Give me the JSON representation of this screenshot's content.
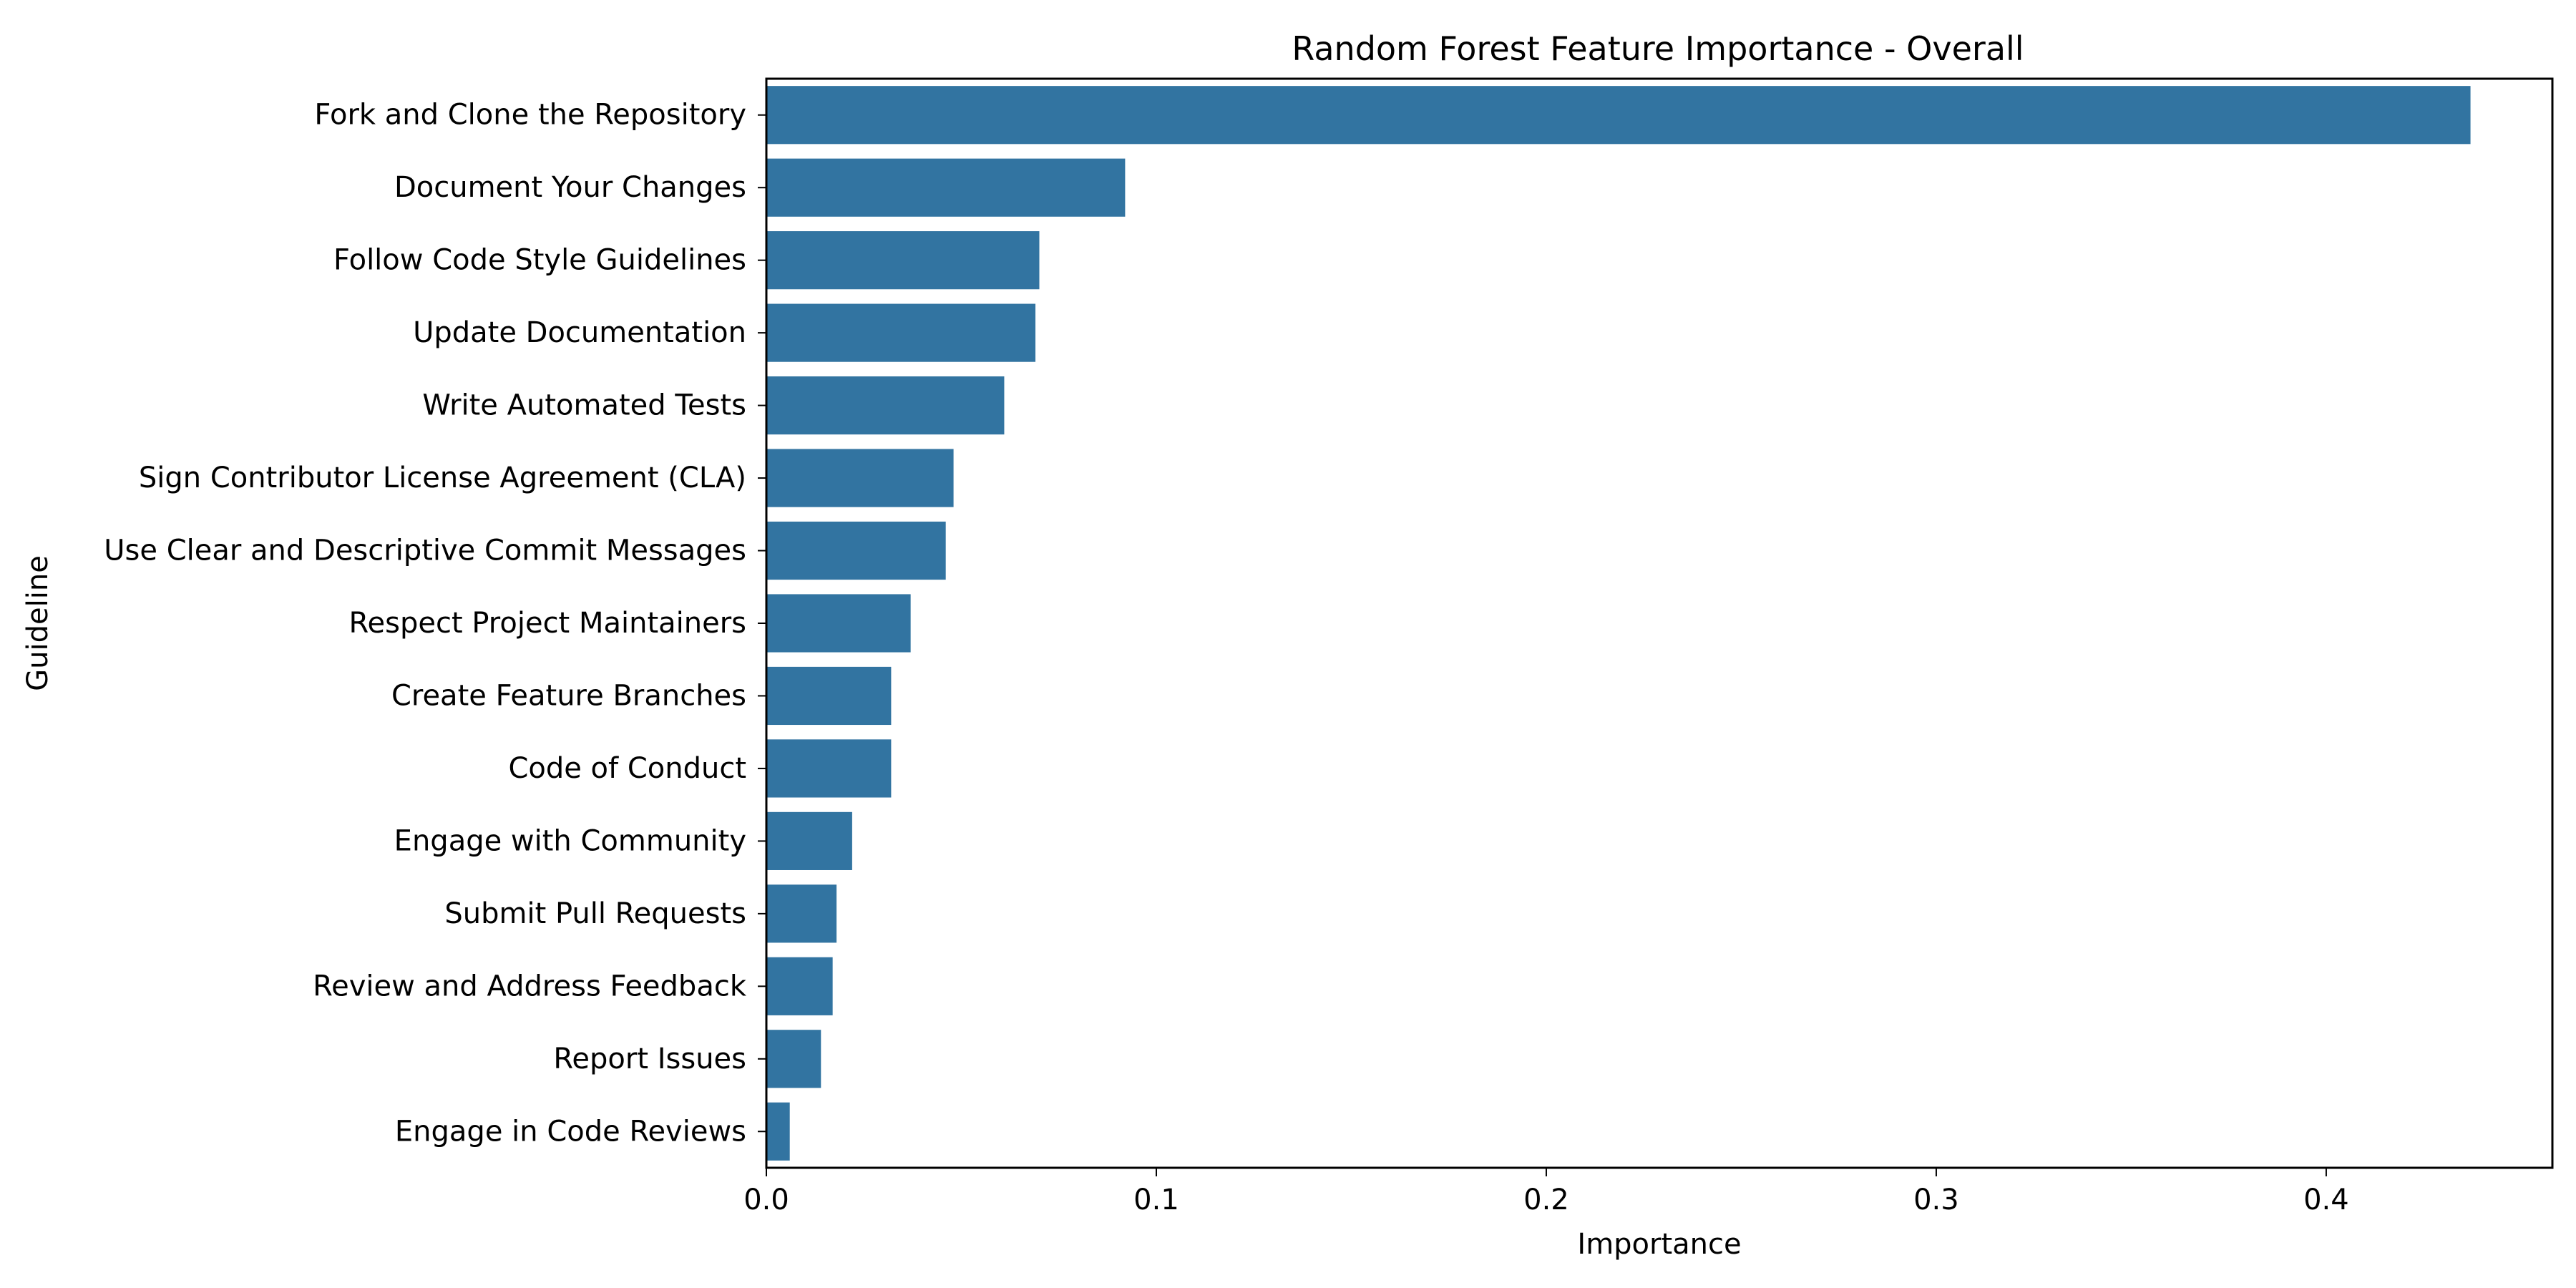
{
  "chart_data": {
    "type": "bar",
    "orientation": "horizontal",
    "title": "Random Forest Feature Importance - Overall",
    "xlabel": "Importance",
    "ylabel": "Guideline",
    "xlim": [
      0,
      0.458
    ],
    "xticks": [
      0.0,
      0.1,
      0.2,
      0.3,
      0.4
    ],
    "xtick_labels": [
      "0.0",
      "0.1",
      "0.2",
      "0.3",
      "0.4"
    ],
    "grid": false,
    "bar_color": "#3274a1",
    "categories": [
      "Fork and Clone the Repository",
      "Document Your Changes",
      "Follow Code Style Guidelines",
      "Update Documentation",
      "Write Automated Tests",
      "Sign Contributor License Agreement (CLA)",
      "Use Clear and Descriptive Commit Messages",
      "Respect Project Maintainers",
      "Create Feature Branches",
      "Code of Conduct",
      "Engage with Community",
      "Submit Pull Requests",
      "Review and Address Feedback",
      "Report Issues",
      "Engage in Code Reviews"
    ],
    "values": [
      0.437,
      0.092,
      0.07,
      0.069,
      0.061,
      0.048,
      0.046,
      0.037,
      0.032,
      0.032,
      0.022,
      0.018,
      0.017,
      0.014,
      0.006
    ]
  }
}
